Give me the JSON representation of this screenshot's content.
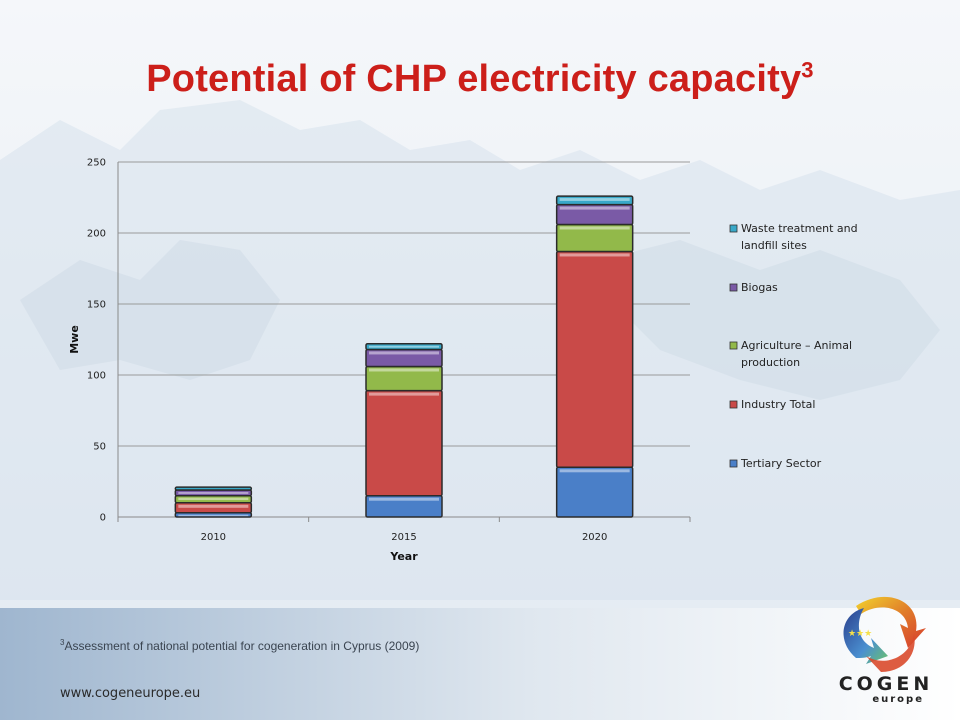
{
  "slide": {
    "title": "Potential of CHP electricity capacity",
    "title_sup": "3",
    "footnote_sup": "3",
    "footnote": "Assessment of national potential for cogeneration in Cyprus (2009)",
    "website": "www.cogeneurope.eu",
    "title_color": "#cc1f1a"
  },
  "logo": {
    "line1": "COGEN",
    "line2": "europe"
  },
  "chart_data": {
    "type": "bar",
    "stacked": true,
    "categories": [
      "2010",
      "2015",
      "2020"
    ],
    "xlabel": "Year",
    "ylabel": "Mwe",
    "ylim": [
      0,
      250
    ],
    "yticks": [
      0,
      50,
      100,
      150,
      200,
      250
    ],
    "grid": true,
    "legend_position": "right",
    "series": [
      {
        "name": "Tertiary Sector",
        "color": "#4a7fc8",
        "values": [
          3,
          15,
          35
        ]
      },
      {
        "name": "Industry Total",
        "color": "#c94a48",
        "values": [
          7,
          74,
          152
        ]
      },
      {
        "name": "Agriculture – Animal production",
        "color": "#92b94a",
        "values": [
          5,
          17,
          19
        ]
      },
      {
        "name": "Biogas",
        "color": "#7a5aa6",
        "values": [
          4,
          12,
          14
        ]
      },
      {
        "name": "Waste treatment and landfill sites",
        "color": "#38a8c8",
        "values": [
          2,
          4,
          6
        ]
      }
    ]
  }
}
